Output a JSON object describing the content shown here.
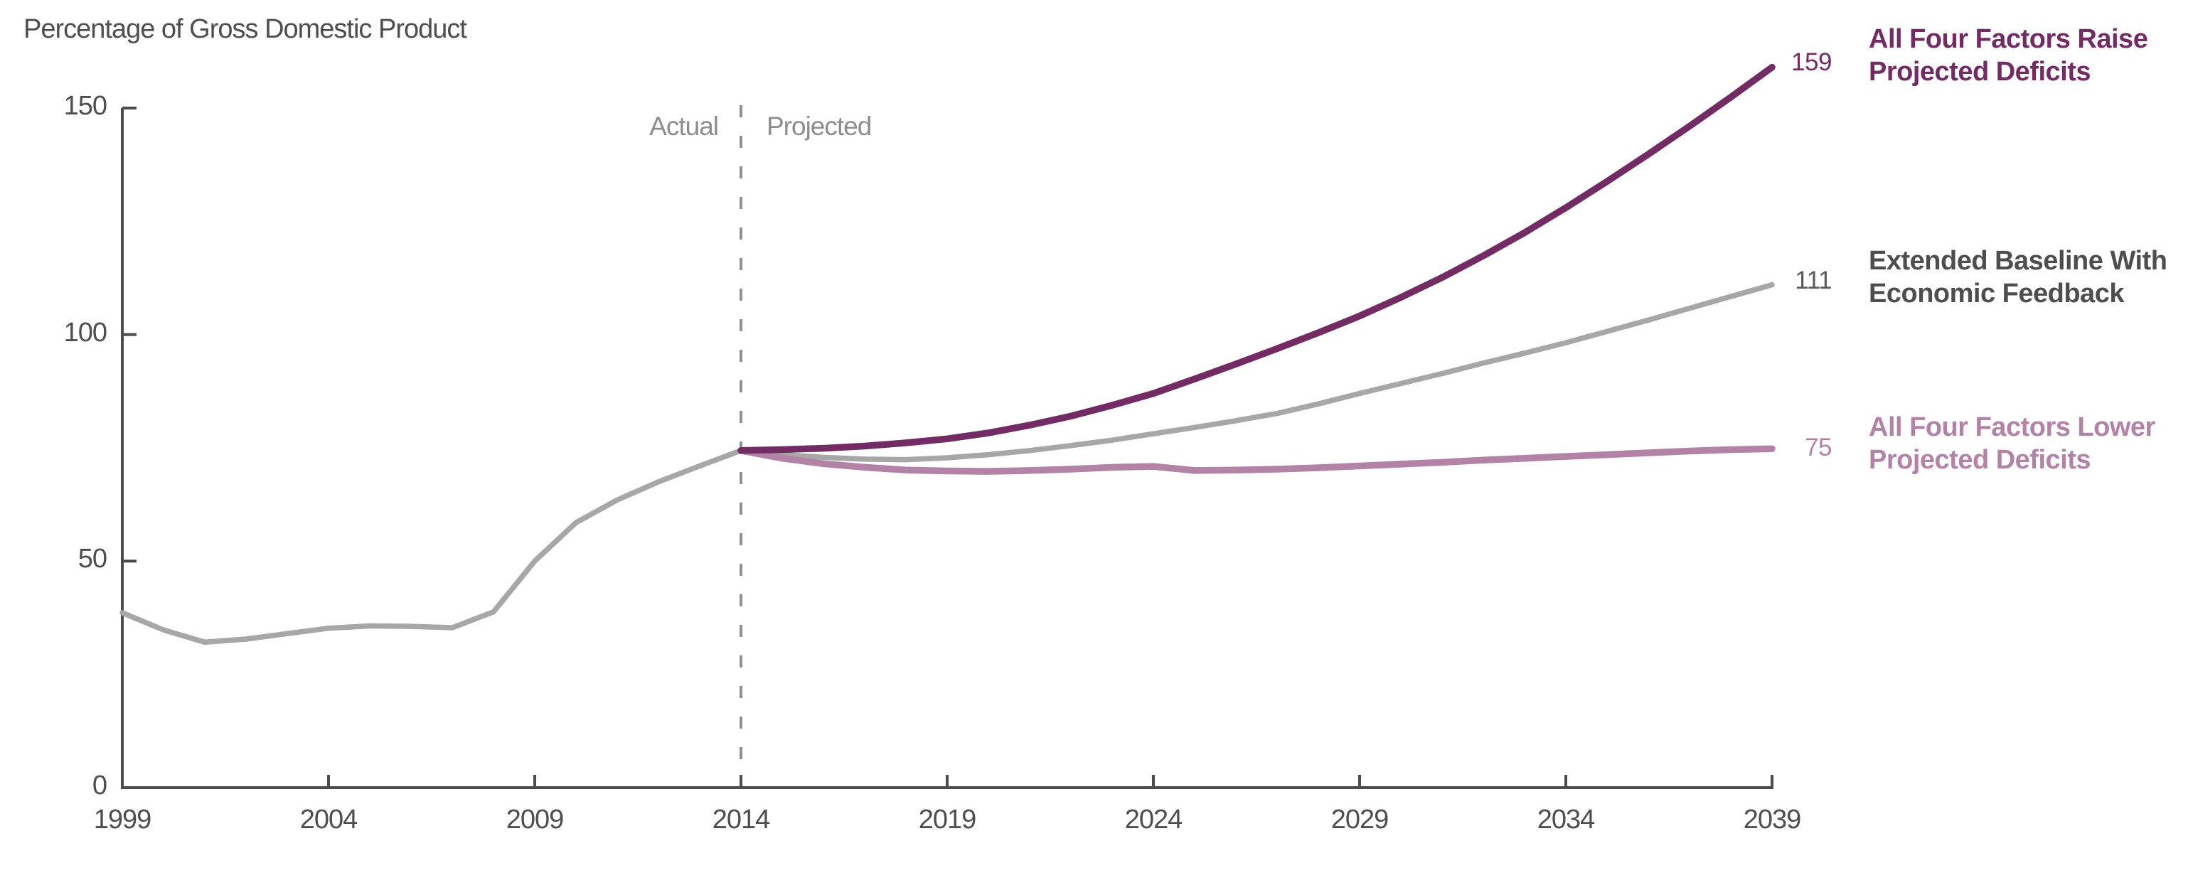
{
  "title": "Percentage of Gross Domestic Product",
  "annotations": {
    "actual": "Actual",
    "projected": "Projected"
  },
  "axes": {
    "y_ticks": [
      0,
      50,
      100,
      150
    ],
    "x_ticks": [
      1999,
      2004,
      2009,
      2014,
      2019,
      2024,
      2029,
      2034,
      2039
    ]
  },
  "colors": {
    "raise": "#722b63",
    "baseline_line": "#a7a7a7",
    "baseline_text": "#4e4e50",
    "lower": "#b283a6",
    "axis": "#4c4c4c",
    "divider": "#8f8f8f",
    "tick_text": "#4e4e50"
  },
  "legend": [
    {
      "value": "159",
      "lines": [
        "All Four Factors Raise",
        "Projected Deficits"
      ],
      "color": "#722b63"
    },
    {
      "value": "111",
      "lines": [
        "Extended Baseline With",
        "Economic Feedback"
      ],
      "color": "#4e4e50",
      "value_color": "#58585a"
    },
    {
      "value": "75",
      "lines": [
        "All Four Factors Lower",
        "Projected Deficits"
      ],
      "color": "#b283a6"
    }
  ],
  "chart_data": {
    "type": "line",
    "title": "Percentage of Gross Domestic Product",
    "xlabel": "",
    "ylabel": "",
    "ylim": [
      0,
      150
    ],
    "xlim": [
      1999,
      2039
    ],
    "grid": false,
    "divider_year": 2014,
    "divider_labels": [
      "Actual",
      "Projected"
    ],
    "series": [
      {
        "name": "Actual (historical debt)",
        "color": "#a7a7a7",
        "width": 7.5,
        "x": [
          1999,
          2000,
          2001,
          2002,
          2003,
          2004,
          2005,
          2006,
          2007,
          2008,
          2009,
          2010,
          2011,
          2012,
          2013,
          2014
        ],
        "values": [
          38.6,
          34.8,
          32.1,
          32.8,
          34.0,
          35.2,
          35.7,
          35.6,
          35.3,
          38.8,
          50.0,
          58.5,
          63.5,
          67.5,
          71.0,
          74.4
        ]
      },
      {
        "name": "Extended Baseline With Economic Feedback",
        "color": "#a7a7a7",
        "width": 7.5,
        "end_label": "111",
        "x": [
          2014,
          2015,
          2016,
          2017,
          2018,
          2019,
          2020,
          2021,
          2022,
          2023,
          2024,
          2025,
          2026,
          2027,
          2028,
          2029,
          2030,
          2031,
          2032,
          2033,
          2034,
          2035,
          2036,
          2037,
          2038,
          2039
        ],
        "values": [
          74.4,
          73.5,
          72.9,
          72.5,
          72.4,
          72.8,
          73.5,
          74.4,
          75.5,
          76.7,
          78.1,
          79.5,
          81.0,
          82.6,
          84.7,
          87.0,
          89.2,
          91.4,
          93.7,
          95.9,
          98.2,
          100.7,
          103.2,
          105.8,
          108.4,
          111.0
        ]
      },
      {
        "name": "All Four Factors Lower Projected Deficits",
        "color": "#b283a6",
        "width": 9.5,
        "end_label": "75",
        "x": [
          2014,
          2015,
          2016,
          2017,
          2018,
          2019,
          2020,
          2021,
          2022,
          2023,
          2024,
          2025,
          2026,
          2027,
          2028,
          2029,
          2030,
          2031,
          2032,
          2033,
          2034,
          2035,
          2036,
          2037,
          2038,
          2039
        ],
        "values": [
          74.4,
          72.7,
          71.5,
          70.7,
          70.1,
          69.9,
          69.8,
          70.0,
          70.3,
          70.7,
          70.9,
          70.0,
          70.1,
          70.3,
          70.6,
          71.0,
          71.4,
          71.8,
          72.3,
          72.7,
          73.1,
          73.5,
          73.9,
          74.3,
          74.6,
          74.8
        ]
      },
      {
        "name": "All Four Factors Raise Projected Deficits",
        "color": "#722b63",
        "width": 9.5,
        "end_label": "159",
        "x": [
          2014,
          2015,
          2016,
          2017,
          2018,
          2019,
          2020,
          2021,
          2022,
          2023,
          2024,
          2025,
          2026,
          2027,
          2028,
          2029,
          2030,
          2031,
          2032,
          2033,
          2034,
          2035,
          2036,
          2037,
          2038,
          2039
        ],
        "values": [
          74.4,
          74.6,
          74.9,
          75.4,
          76.1,
          77.0,
          78.3,
          80.0,
          82.0,
          84.4,
          87.0,
          90.2,
          93.5,
          96.9,
          100.4,
          104.1,
          108.2,
          112.6,
          117.4,
          122.5,
          128.0,
          133.8,
          139.8,
          146.0,
          152.4,
          159.0
        ]
      }
    ]
  }
}
